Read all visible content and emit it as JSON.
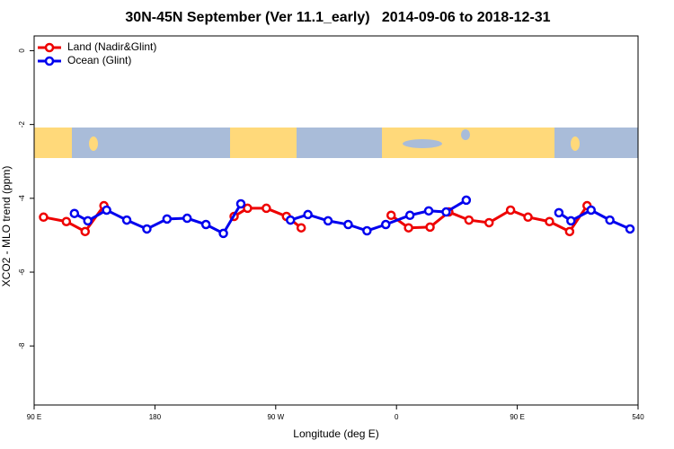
{
  "chart_data": {
    "type": "line",
    "title": "30N-45N September (Ver 11.1_early)   2014-09-06 to 2018-12-31",
    "x_label": "Longitude (deg E)",
    "y_label": "XCO2 - MLO trend (ppm)",
    "xlim": [
      90,
      540
    ],
    "xticks": [
      {
        "value": 90,
        "label": "90 E"
      },
      180,
      {
        "value": 270,
        "label": "90 W"
      },
      {
        "value": 360,
        "label": "0"
      },
      {
        "value": 450,
        "label": "90 E"
      },
      540
    ],
    "ylim": [
      -9.6,
      0.4
    ],
    "yticks": [
      0,
      -2,
      -4,
      -6,
      -8
    ],
    "legend": "top-left",
    "series": [
      {
        "name": "Land (Nadir&Glint)",
        "color": "#ee0000",
        "x": [
          97,
          114,
          128,
          142,
          null,
          239,
          249,
          263,
          278,
          289,
          null,
          356,
          369,
          385,
          399,
          414,
          429,
          445,
          458,
          474,
          489,
          502
        ],
        "values": [
          -4.51,
          -4.63,
          -4.9,
          -4.2,
          null,
          -4.49,
          -4.27,
          -4.27,
          -4.49,
          -4.8,
          null,
          -4.46,
          -4.8,
          -4.78,
          -4.37,
          -4.59,
          -4.66,
          -4.32,
          -4.51,
          -4.63,
          -4.9,
          -4.2
        ]
      },
      {
        "name": "Ocean (Glint)",
        "color": "#0000ee",
        "x": [
          120,
          130,
          144,
          159,
          174,
          189,
          204,
          218,
          231,
          244,
          null,
          281,
          294,
          309,
          324,
          338,
          352,
          370,
          384,
          397,
          412,
          null,
          481,
          490,
          505,
          519,
          534
        ],
        "values": [
          -4.41,
          -4.61,
          -4.32,
          -4.59,
          -4.83,
          -4.56,
          -4.54,
          -4.71,
          -4.95,
          -4.15,
          null,
          -4.59,
          -4.44,
          -4.61,
          -4.71,
          -4.88,
          -4.71,
          -4.46,
          -4.34,
          -4.37,
          -4.05,
          null,
          -4.39,
          -4.61,
          -4.32,
          -4.59,
          -4.83
        ]
      }
    ]
  }
}
